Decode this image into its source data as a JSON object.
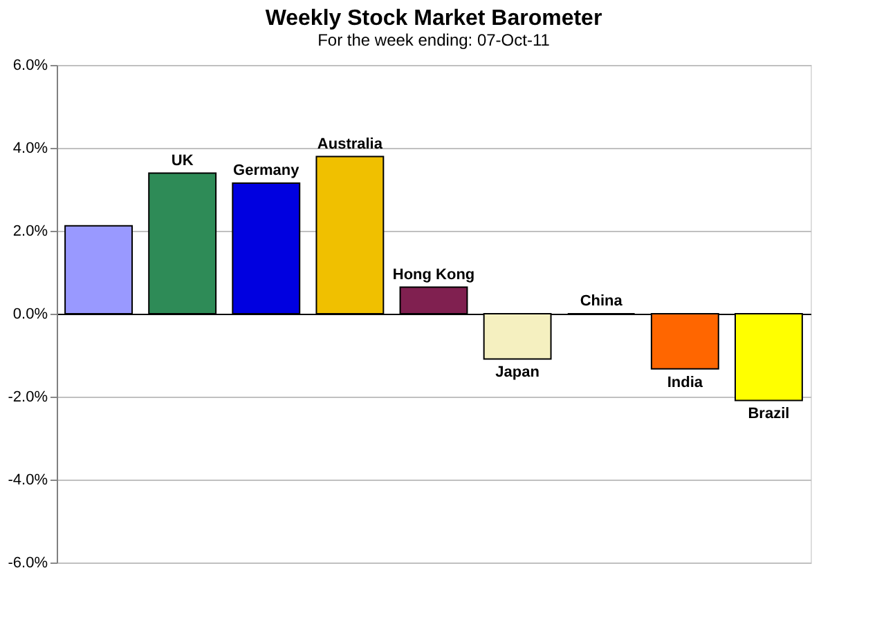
{
  "chart_data": {
    "type": "bar",
    "title": "Weekly Stock Market Barometer",
    "subtitle": "For the week ending: 07-Oct-11",
    "categories": [
      null,
      "UK",
      "Germany",
      "Australia",
      "Hong Kong",
      "Japan",
      "China",
      "India",
      "Brazil"
    ],
    "values": [
      2.12,
      3.39,
      3.15,
      3.79,
      0.64,
      -1.09,
      0,
      -1.33,
      -2.09
    ],
    "colors": [
      "#9999ff",
      "#2e8b57",
      "#0000e0",
      "#f0c000",
      "#802050",
      "#f5f0c0",
      "#000000",
      "#ff6600",
      "#ffff00"
    ],
    "ylim": [
      -6,
      6
    ],
    "yticks": [
      {
        "value": -6,
        "label": "-6.0%"
      },
      {
        "value": -4,
        "label": "-4.0%"
      },
      {
        "value": -2,
        "label": "-2.0%"
      },
      {
        "value": 0,
        "label": "0.0%"
      },
      {
        "value": 2,
        "label": "2.0%"
      },
      {
        "value": 4,
        "label": "4.0%"
      },
      {
        "value": 6,
        "label": "6.0%"
      }
    ],
    "grid": "y",
    "tick_labels": "y"
  }
}
